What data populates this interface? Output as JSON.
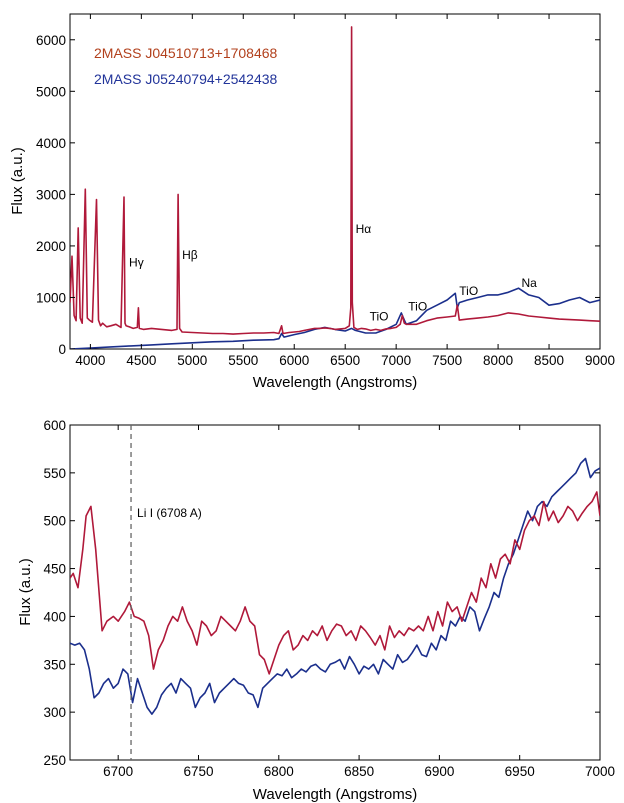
{
  "colors": {
    "series_red": "#b0193a",
    "series_blue": "#1b2f8c",
    "legend_red": "#b2401c",
    "legend_blue": "#22349a"
  },
  "chart_data": [
    {
      "type": "line",
      "xlabel": "Wavelength (Angstroms)",
      "ylabel": "Flux (a.u.)",
      "xlim": [
        3800,
        9000
      ],
      "ylim": [
        0,
        6500
      ],
      "xticks": [
        4000,
        4500,
        5000,
        5500,
        6000,
        6500,
        7000,
        7500,
        8000,
        8500,
        9000
      ],
      "yticks": [
        0,
        1000,
        2000,
        3000,
        4000,
        5000,
        6000
      ],
      "grid": false,
      "legend": "top-left",
      "series": [
        {
          "name": "2MASS J04510713+1708468",
          "color": "red",
          "x": [
            3800,
            3820,
            3840,
            3860,
            3880,
            3900,
            3920,
            3950,
            3970,
            3990,
            4020,
            4060,
            4080,
            4100,
            4120,
            4160,
            4200,
            4250,
            4300,
            4330,
            4340,
            4350,
            4380,
            4420,
            4460,
            4471,
            4480,
            4520,
            4600,
            4700,
            4800,
            4850,
            4861,
            4875,
            4900,
            5000,
            5100,
            5200,
            5300,
            5400,
            5500,
            5600,
            5700,
            5800,
            5850,
            5876,
            5890,
            5950,
            6000,
            6050,
            6100,
            6150,
            6200,
            6250,
            6300,
            6350,
            6400,
            6450,
            6500,
            6540,
            6555,
            6563,
            6570,
            6585,
            6620,
            6660,
            6700,
            6750,
            6800,
            6850,
            6900,
            6950,
            7000,
            7040,
            7060,
            7080,
            7100,
            7200,
            7300,
            7400,
            7500,
            7580,
            7600,
            7620,
            7700,
            7800,
            7900,
            8000,
            8100,
            8200,
            8300,
            8400,
            8500,
            8600,
            8700,
            8800,
            8900,
            9000
          ],
          "y": [
            900,
            1800,
            650,
            550,
            2350,
            600,
            500,
            3100,
            600,
            560,
            520,
            2900,
            560,
            450,
            500,
            430,
            450,
            480,
            420,
            2950,
            500,
            450,
            430,
            400,
            420,
            800,
            400,
            380,
            400,
            380,
            360,
            380,
            3000,
            400,
            330,
            320,
            310,
            300,
            300,
            290,
            300,
            310,
            310,
            320,
            300,
            450,
            300,
            320,
            330,
            340,
            360,
            380,
            400,
            400,
            410,
            400,
            380,
            390,
            400,
            450,
            800,
            6250,
            900,
            420,
            380,
            400,
            390,
            360,
            380,
            360,
            390,
            400,
            420,
            480,
            650,
            500,
            480,
            480,
            550,
            600,
            620,
            640,
            850,
            560,
            580,
            600,
            620,
            650,
            700,
            680,
            640,
            620,
            600,
            580,
            570,
            560,
            550,
            540
          ]
        },
        {
          "name": "2MASS J05240794+2542438",
          "color": "blue",
          "x": [
            3800,
            4000,
            4200,
            4400,
            4600,
            4800,
            5000,
            5200,
            5400,
            5600,
            5800,
            5850,
            5876,
            5900,
            6000,
            6100,
            6200,
            6300,
            6400,
            6500,
            6563,
            6600,
            6700,
            6800,
            6900,
            7000,
            7050,
            7080,
            7100,
            7200,
            7300,
            7400,
            7500,
            7580,
            7600,
            7620,
            7700,
            7800,
            7900,
            8000,
            8100,
            8200,
            8300,
            8400,
            8500,
            8600,
            8700,
            8800,
            8900,
            9000
          ],
          "y": [
            0,
            20,
            40,
            60,
            80,
            100,
            120,
            140,
            150,
            170,
            180,
            200,
            300,
            230,
            280,
            320,
            380,
            420,
            380,
            350,
            400,
            360,
            310,
            310,
            380,
            480,
            700,
            560,
            480,
            550,
            750,
            850,
            950,
            1080,
            800,
            900,
            950,
            1000,
            1050,
            1050,
            1100,
            1180,
            1050,
            1000,
            850,
            880,
            950,
            1000,
            900,
            950
          ]
        }
      ],
      "annotations": [
        {
          "text": "Hγ",
          "x": 4340,
          "y": 1600
        },
        {
          "text": "Hβ",
          "x": 4861,
          "y": 1750
        },
        {
          "text": "Hα",
          "x": 6563,
          "y": 2250
        },
        {
          "text": "TiO",
          "x": 6700,
          "y": 550
        },
        {
          "text": "TiO",
          "x": 7080,
          "y": 750
        },
        {
          "text": "TiO",
          "x": 7580,
          "y": 1050
        },
        {
          "text": "Na",
          "x": 8190,
          "y": 1200
        }
      ]
    },
    {
      "type": "line",
      "xlabel": "Wavelength (Angstroms)",
      "ylabel": "Flux (a.u.)",
      "xlim": [
        6670,
        7000
      ],
      "ylim": [
        250,
        600
      ],
      "xticks": [
        6700,
        6750,
        6800,
        6850,
        6900,
        6950,
        7000
      ],
      "yticks": [
        250,
        300,
        350,
        400,
        450,
        500,
        550,
        600
      ],
      "grid": false,
      "series": [
        {
          "color": "red",
          "x": [
            6670,
            6672,
            6675,
            6678,
            6680,
            6683,
            6686,
            6690,
            6693,
            6697,
            6700,
            6704,
            6707,
            6710,
            6713,
            6716,
            6719,
            6722,
            6725,
            6728,
            6731,
            6734,
            6737,
            6740,
            6743,
            6746,
            6749,
            6752,
            6755,
            6758,
            6761,
            6764,
            6767,
            6770,
            6773,
            6776,
            6779,
            6782,
            6785,
            6788,
            6791,
            6794,
            6797,
            6800,
            6803,
            6806,
            6809,
            6812,
            6815,
            6818,
            6821,
            6824,
            6827,
            6830,
            6833,
            6836,
            6839,
            6842,
            6845,
            6848,
            6851,
            6854,
            6857,
            6860,
            6863,
            6866,
            6869,
            6872,
            6875,
            6878,
            6881,
            6884,
            6887,
            6890,
            6893,
            6896,
            6899,
            6902,
            6905,
            6908,
            6911,
            6914,
            6917,
            6920,
            6923,
            6926,
            6929,
            6932,
            6935,
            6938,
            6941,
            6944,
            6947,
            6950,
            6953,
            6956,
            6959,
            6962,
            6965,
            6968,
            6971,
            6974,
            6977,
            6980,
            6983,
            6986,
            6989,
            6992,
            6995,
            6998,
            7000
          ],
          "y": [
            440,
            445,
            430,
            470,
            505,
            515,
            470,
            385,
            395,
            400,
            395,
            405,
            415,
            400,
            398,
            395,
            380,
            345,
            365,
            375,
            390,
            400,
            395,
            410,
            395,
            385,
            370,
            395,
            390,
            380,
            385,
            400,
            395,
            390,
            385,
            395,
            410,
            395,
            390,
            360,
            355,
            340,
            355,
            370,
            380,
            385,
            365,
            370,
            380,
            375,
            385,
            380,
            390,
            375,
            385,
            392,
            390,
            380,
            385,
            375,
            390,
            385,
            378,
            370,
            380,
            365,
            390,
            378,
            385,
            380,
            388,
            385,
            390,
            385,
            400,
            385,
            405,
            390,
            415,
            405,
            410,
            395,
            410,
            425,
            415,
            440,
            430,
            455,
            440,
            460,
            465,
            455,
            480,
            470,
            490,
            500,
            505,
            495,
            520,
            500,
            510,
            498,
            505,
            515,
            510,
            500,
            508,
            515,
            520,
            530,
            505
          ]
        },
        {
          "color": "blue",
          "x": [
            6670,
            6673,
            6676,
            6679,
            6682,
            6685,
            6688,
            6691,
            6694,
            6697,
            6700,
            6703,
            6706,
            6709,
            6712,
            6715,
            6718,
            6721,
            6724,
            6727,
            6730,
            6733,
            6736,
            6739,
            6742,
            6745,
            6748,
            6751,
            6754,
            6757,
            6760,
            6763,
            6766,
            6769,
            6772,
            6775,
            6778,
            6781,
            6784,
            6787,
            6790,
            6793,
            6796,
            6799,
            6802,
            6805,
            6808,
            6811,
            6814,
            6817,
            6820,
            6823,
            6826,
            6829,
            6832,
            6835,
            6838,
            6841,
            6844,
            6847,
            6850,
            6853,
            6856,
            6859,
            6862,
            6865,
            6868,
            6871,
            6874,
            6877,
            6880,
            6883,
            6886,
            6889,
            6892,
            6895,
            6898,
            6901,
            6904,
            6907,
            6910,
            6913,
            6916,
            6919,
            6922,
            6925,
            6928,
            6931,
            6934,
            6937,
            6940,
            6943,
            6946,
            6949,
            6952,
            6955,
            6958,
            6961,
            6964,
            6967,
            6970,
            6973,
            6976,
            6979,
            6982,
            6985,
            6988,
            6991,
            6994,
            6997,
            7000
          ],
          "y": [
            372,
            370,
            372,
            365,
            345,
            315,
            320,
            330,
            335,
            325,
            330,
            345,
            340,
            310,
            335,
            320,
            305,
            298,
            305,
            318,
            325,
            330,
            320,
            335,
            330,
            325,
            305,
            315,
            320,
            330,
            310,
            320,
            325,
            330,
            335,
            330,
            328,
            320,
            318,
            305,
            325,
            330,
            335,
            340,
            338,
            345,
            336,
            340,
            345,
            342,
            348,
            350,
            345,
            342,
            350,
            352,
            355,
            345,
            358,
            350,
            340,
            348,
            345,
            350,
            340,
            355,
            350,
            345,
            360,
            352,
            355,
            362,
            370,
            360,
            358,
            372,
            365,
            380,
            375,
            395,
            390,
            400,
            395,
            410,
            405,
            385,
            398,
            410,
            425,
            420,
            440,
            455,
            465,
            480,
            495,
            510,
            500,
            515,
            520,
            515,
            525,
            530,
            535,
            540,
            545,
            550,
            560,
            565,
            545,
            552,
            555
          ]
        }
      ],
      "annotations": [
        {
          "text": "Li I (6708 A)",
          "x": 6708
        }
      ],
      "vline": {
        "x": 6708,
        "style": "dashed"
      }
    }
  ]
}
